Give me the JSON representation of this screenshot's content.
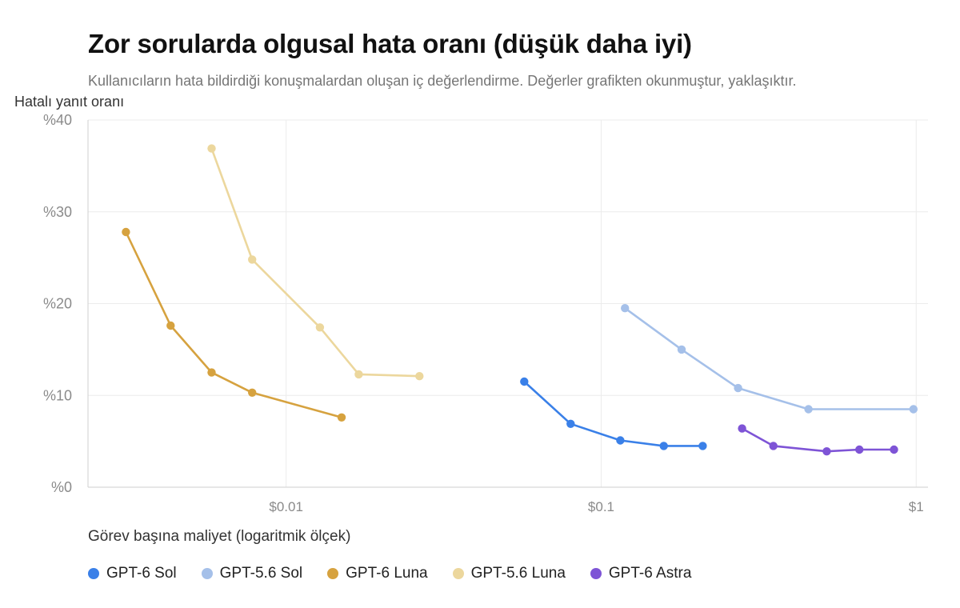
{
  "chart_data": {
    "type": "line",
    "title": "Zor sorularda olgusal hata oranı (düşük daha iyi)",
    "subtitle": "Kullanıcıların hata bildirdiği konuşmalardan oluşan iç değerlendirme. Değerler grafikten okunmuştur, yaklaşıktır.",
    "ylabel": "Hatalı yanıt oranı",
    "xlabel": "Görev başına maliyet (logaritmik ölçek)",
    "x_scale": "log",
    "xlim": [
      0.00235,
      1.09
    ],
    "ylim": [
      0,
      40
    ],
    "x_ticks": [
      {
        "value": 0.01,
        "label": "$0.01"
      },
      {
        "value": 0.1,
        "label": "$0.1"
      },
      {
        "value": 1,
        "label": "$1"
      }
    ],
    "y_ticks": [
      {
        "value": 0,
        "label": "%0"
      },
      {
        "value": 10,
        "label": "%10"
      },
      {
        "value": 20,
        "label": "%20"
      },
      {
        "value": 30,
        "label": "%30"
      },
      {
        "value": 40,
        "label": "%40"
      }
    ],
    "grid": true,
    "legend_position": "bottom",
    "series": [
      {
        "name": "GPT-6 Sol",
        "color": "#3a80e8",
        "points": [
          [
            0.057,
            11.5
          ],
          [
            0.08,
            6.9
          ],
          [
            0.115,
            5.1
          ],
          [
            0.158,
            4.5
          ],
          [
            0.21,
            4.5
          ]
        ]
      },
      {
        "name": "GPT-5.6 Sol",
        "color": "#a5c0e9",
        "points": [
          [
            0.119,
            19.5
          ],
          [
            0.18,
            15.0
          ],
          [
            0.272,
            10.8
          ],
          [
            0.455,
            8.5
          ],
          [
            0.98,
            8.5
          ]
        ]
      },
      {
        "name": "GPT-6 Luna",
        "color": "#d6a23f",
        "points": [
          [
            0.0031,
            27.8
          ],
          [
            0.0043,
            17.6
          ],
          [
            0.0058,
            12.5
          ],
          [
            0.0078,
            10.3
          ],
          [
            0.015,
            7.6
          ]
        ]
      },
      {
        "name": "GPT-5.6 Luna",
        "color": "#ecd79d",
        "points": [
          [
            0.0058,
            36.9
          ],
          [
            0.0078,
            24.8
          ],
          [
            0.0128,
            17.4
          ],
          [
            0.017,
            12.3
          ],
          [
            0.0265,
            12.1
          ]
        ]
      },
      {
        "name": "GPT-6 Astra",
        "color": "#7e54d6",
        "points": [
          [
            0.28,
            6.4
          ],
          [
            0.352,
            4.5
          ],
          [
            0.52,
            3.9
          ],
          [
            0.66,
            4.1
          ],
          [
            0.85,
            4.1
          ]
        ]
      }
    ]
  }
}
